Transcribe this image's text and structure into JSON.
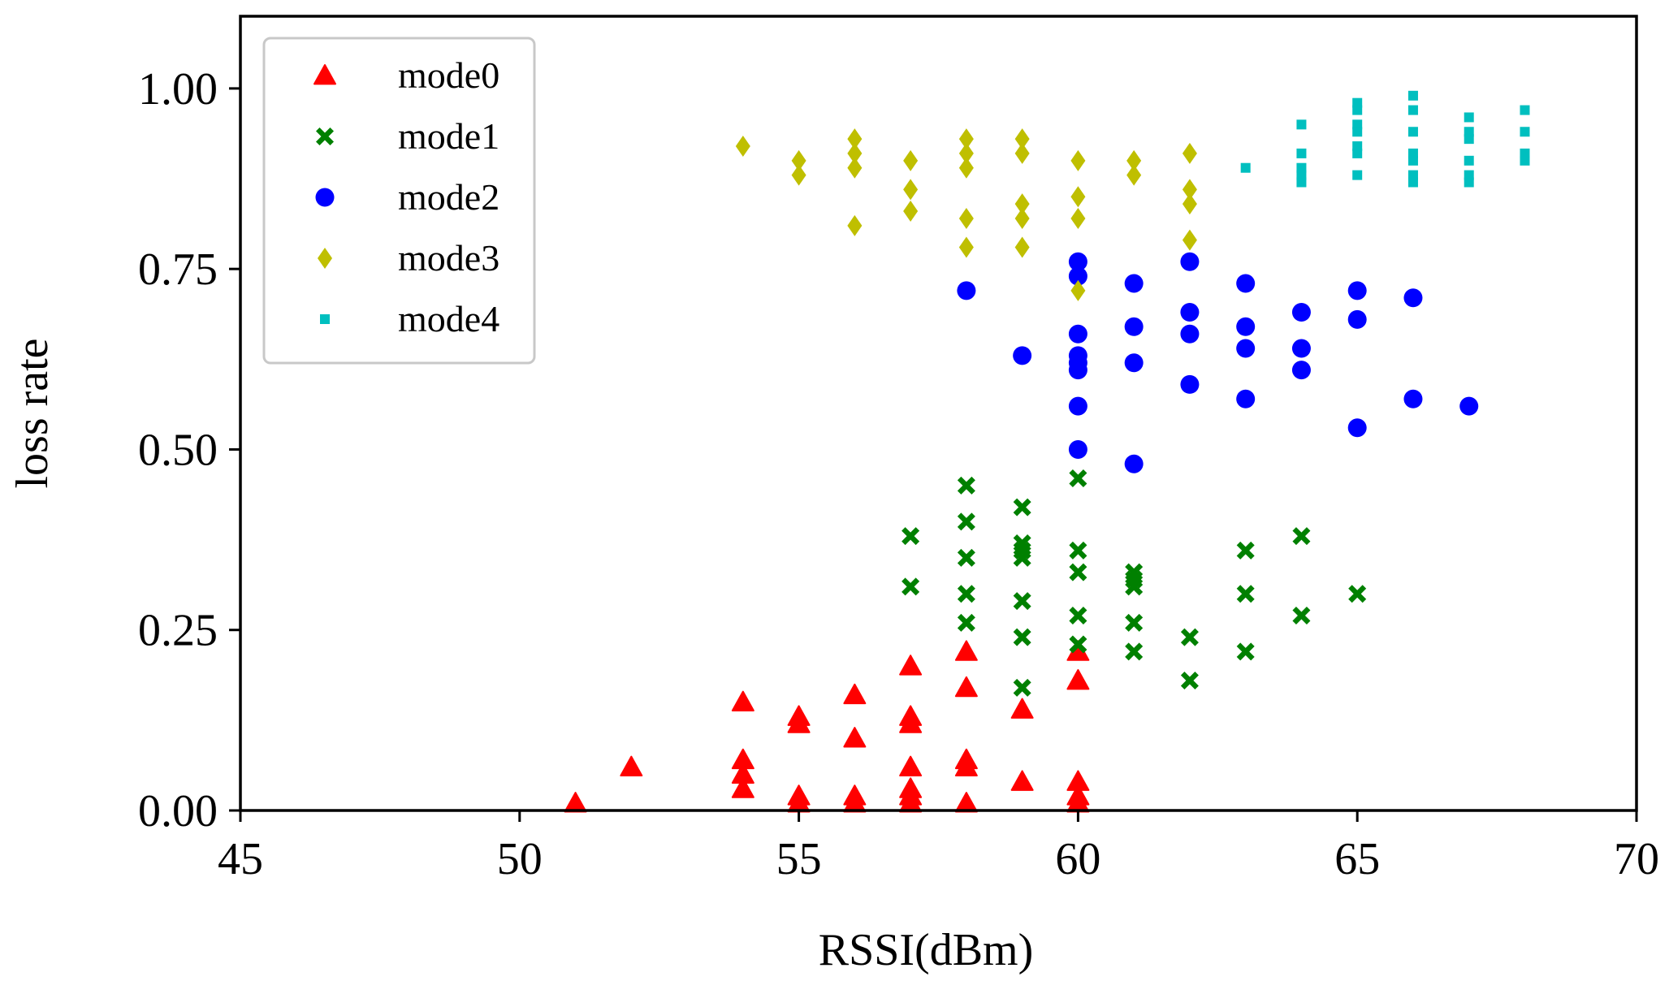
{
  "chart_data": {
    "type": "scatter",
    "title": "",
    "xlabel": "RSSI(dBm)",
    "ylabel": "loss rate",
    "xlim": [
      45,
      70
    ],
    "ylim": [
      0,
      1.1
    ],
    "xticks": [
      45,
      50,
      55,
      60,
      65,
      70
    ],
    "yticks": [
      0.0,
      0.25,
      0.5,
      0.75,
      1.0
    ],
    "xtick_labels": [
      "45",
      "50",
      "55",
      "60",
      "65",
      "70"
    ],
    "ytick_labels": [
      "0.00",
      "0.25",
      "0.50",
      "0.75",
      "1.00"
    ],
    "grid": false,
    "legend_position": "top-left",
    "series": [
      {
        "name": "mode0",
        "marker": "triangle",
        "color": "#ff0000",
        "points": [
          [
            51,
            0.01
          ],
          [
            52,
            0.06
          ],
          [
            54,
            0.15
          ],
          [
            54,
            0.07
          ],
          [
            54,
            0.05
          ],
          [
            54,
            0.03
          ],
          [
            55,
            0.13
          ],
          [
            55,
            0.12
          ],
          [
            55,
            0.02
          ],
          [
            55,
            0.01
          ],
          [
            56,
            0.16
          ],
          [
            56,
            0.1
          ],
          [
            56,
            0.02
          ],
          [
            56,
            0.01
          ],
          [
            57,
            0.2
          ],
          [
            57,
            0.13
          ],
          [
            57,
            0.12
          ],
          [
            57,
            0.06
          ],
          [
            57,
            0.03
          ],
          [
            57,
            0.02
          ],
          [
            57,
            0.01
          ],
          [
            58,
            0.22
          ],
          [
            58,
            0.17
          ],
          [
            58,
            0.07
          ],
          [
            58,
            0.06
          ],
          [
            58,
            0.01
          ],
          [
            59,
            0.14
          ],
          [
            59,
            0.04
          ],
          [
            60,
            0.22
          ],
          [
            60,
            0.18
          ],
          [
            60,
            0.04
          ],
          [
            60,
            0.02
          ],
          [
            60,
            0.01
          ]
        ]
      },
      {
        "name": "mode1",
        "marker": "cross",
        "color": "#008000",
        "points": [
          [
            57,
            0.38
          ],
          [
            57,
            0.31
          ],
          [
            58,
            0.45
          ],
          [
            58,
            0.4
          ],
          [
            58,
            0.35
          ],
          [
            58,
            0.3
          ],
          [
            58,
            0.26
          ],
          [
            59,
            0.42
          ],
          [
            59,
            0.37
          ],
          [
            59,
            0.36
          ],
          [
            59,
            0.35
          ],
          [
            59,
            0.29
          ],
          [
            59,
            0.24
          ],
          [
            59,
            0.17
          ],
          [
            60,
            0.46
          ],
          [
            60,
            0.36
          ],
          [
            60,
            0.33
          ],
          [
            60,
            0.27
          ],
          [
            60,
            0.23
          ],
          [
            61,
            0.33
          ],
          [
            61,
            0.32
          ],
          [
            61,
            0.31
          ],
          [
            61,
            0.26
          ],
          [
            61,
            0.22
          ],
          [
            62,
            0.24
          ],
          [
            62,
            0.18
          ],
          [
            63,
            0.36
          ],
          [
            63,
            0.3
          ],
          [
            63,
            0.22
          ],
          [
            64,
            0.38
          ],
          [
            64,
            0.27
          ],
          [
            65,
            0.3
          ]
        ]
      },
      {
        "name": "mode2",
        "marker": "circle",
        "color": "#0000ff",
        "points": [
          [
            58,
            0.72
          ],
          [
            59,
            0.63
          ],
          [
            60,
            0.76
          ],
          [
            60,
            0.74
          ],
          [
            60,
            0.66
          ],
          [
            60,
            0.63
          ],
          [
            60,
            0.62
          ],
          [
            60,
            0.61
          ],
          [
            60,
            0.56
          ],
          [
            60,
            0.5
          ],
          [
            61,
            0.73
          ],
          [
            61,
            0.67
          ],
          [
            61,
            0.62
          ],
          [
            61,
            0.48
          ],
          [
            62,
            0.76
          ],
          [
            62,
            0.69
          ],
          [
            62,
            0.66
          ],
          [
            62,
            0.59
          ],
          [
            63,
            0.73
          ],
          [
            63,
            0.67
          ],
          [
            63,
            0.64
          ],
          [
            63,
            0.57
          ],
          [
            64,
            0.69
          ],
          [
            64,
            0.64
          ],
          [
            64,
            0.61
          ],
          [
            65,
            0.72
          ],
          [
            65,
            0.68
          ],
          [
            65,
            0.53
          ],
          [
            66,
            0.71
          ],
          [
            66,
            0.57
          ],
          [
            67,
            0.56
          ]
        ]
      },
      {
        "name": "mode3",
        "marker": "diamond",
        "color": "#bfbf00",
        "points": [
          [
            54,
            0.92
          ],
          [
            55,
            0.9
          ],
          [
            55,
            0.88
          ],
          [
            56,
            0.93
          ],
          [
            56,
            0.91
          ],
          [
            56,
            0.89
          ],
          [
            56,
            0.81
          ],
          [
            57,
            0.9
          ],
          [
            57,
            0.86
          ],
          [
            57,
            0.83
          ],
          [
            58,
            0.93
          ],
          [
            58,
            0.91
          ],
          [
            58,
            0.89
          ],
          [
            58,
            0.82
          ],
          [
            58,
            0.78
          ],
          [
            59,
            0.93
          ],
          [
            59,
            0.91
          ],
          [
            59,
            0.84
          ],
          [
            59,
            0.82
          ],
          [
            59,
            0.78
          ],
          [
            60,
            0.9
          ],
          [
            60,
            0.85
          ],
          [
            60,
            0.82
          ],
          [
            60,
            0.72
          ],
          [
            61,
            0.9
          ],
          [
            61,
            0.88
          ],
          [
            62,
            0.91
          ],
          [
            62,
            0.86
          ],
          [
            62,
            0.84
          ],
          [
            62,
            0.79
          ]
        ]
      },
      {
        "name": "mode4",
        "marker": "square",
        "color": "#00bfbf",
        "points": [
          [
            63,
            0.89
          ],
          [
            64,
            0.95
          ],
          [
            64,
            0.91
          ],
          [
            64,
            0.89
          ],
          [
            64,
            0.88
          ],
          [
            64,
            0.87
          ],
          [
            65,
            0.98
          ],
          [
            65,
            0.97
          ],
          [
            65,
            0.95
          ],
          [
            65,
            0.94
          ],
          [
            65,
            0.92
          ],
          [
            65,
            0.91
          ],
          [
            65,
            0.88
          ],
          [
            66,
            0.99
          ],
          [
            66,
            0.97
          ],
          [
            66,
            0.94
          ],
          [
            66,
            0.91
          ],
          [
            66,
            0.9
          ],
          [
            66,
            0.88
          ],
          [
            66,
            0.87
          ],
          [
            67,
            0.96
          ],
          [
            67,
            0.94
          ],
          [
            67,
            0.93
          ],
          [
            67,
            0.9
          ],
          [
            67,
            0.88
          ],
          [
            67,
            0.87
          ],
          [
            68,
            0.97
          ],
          [
            68,
            0.94
          ],
          [
            68,
            0.91
          ],
          [
            68,
            0.9
          ]
        ]
      }
    ]
  }
}
